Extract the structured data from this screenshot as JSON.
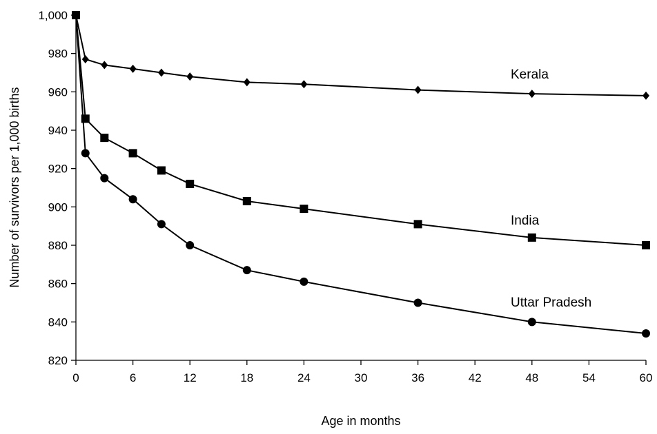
{
  "chart_data": {
    "type": "line",
    "title": "",
    "xlabel": "Age in months",
    "ylabel": "Number of survivors per 1,000 births",
    "xlim": [
      0,
      60
    ],
    "ylim": [
      820,
      1000
    ],
    "x_ticks": [
      0,
      6,
      12,
      18,
      24,
      30,
      36,
      42,
      48,
      54,
      60
    ],
    "y_ticks": [
      820,
      840,
      860,
      880,
      900,
      920,
      940,
      960,
      980,
      1000
    ],
    "y_tick_labels": [
      "820",
      "840",
      "860",
      "880",
      "900",
      "920",
      "940",
      "960",
      "980",
      "1,000"
    ],
    "grid": false,
    "legend": "none (series labelled directly on the plot)",
    "series": [
      {
        "name": "Kerala",
        "marker": "diamond",
        "x": [
          0,
          1,
          3,
          6,
          9,
          12,
          18,
          24,
          36,
          48,
          60
        ],
        "values": [
          1000,
          977,
          974,
          972,
          970,
          968,
          965,
          964,
          961,
          959,
          958
        ]
      },
      {
        "name": "India",
        "marker": "square",
        "x": [
          0,
          1,
          3,
          6,
          9,
          12,
          18,
          24,
          36,
          48,
          60
        ],
        "values": [
          1000,
          946,
          936,
          928,
          919,
          912,
          903,
          899,
          891,
          884,
          880
        ]
      },
      {
        "name": "Uttar Pradesh",
        "marker": "circle",
        "x": [
          0,
          1,
          3,
          6,
          9,
          12,
          18,
          24,
          36,
          48,
          60
        ],
        "values": [
          1000,
          928,
          915,
          904,
          891,
          880,
          867,
          861,
          850,
          840,
          834
        ]
      }
    ]
  }
}
